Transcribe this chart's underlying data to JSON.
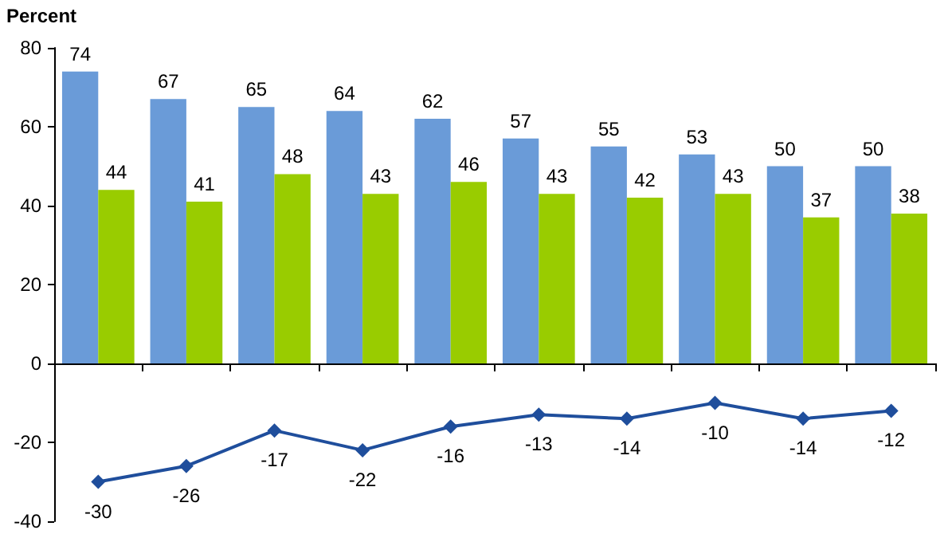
{
  "chart_data": {
    "type": "bar",
    "ylabel": "Percent",
    "categories": [
      null,
      null,
      null,
      null,
      null,
      null,
      null,
      null,
      null,
      null
    ],
    "series": [
      {
        "color": "#6a9bd8",
        "values": [
          74,
          67,
          65,
          64,
          62,
          57,
          55,
          53,
          50,
          50
        ]
      },
      {
        "color": "#99cc00",
        "values": [
          44,
          41,
          48,
          43,
          46,
          43,
          42,
          43,
          37,
          38
        ]
      },
      {
        "type": "line",
        "color": "#1f4e9c",
        "values": [
          -30,
          -26,
          -17,
          -22,
          -16,
          -13,
          -14,
          -10,
          -14,
          -12
        ]
      }
    ],
    "ylim": [
      -40,
      80
    ],
    "yticks": [
      -40,
      -20,
      0,
      20,
      40,
      60,
      80
    ],
    "data_labels": true,
    "marker": "diamond",
    "line_style": "solid"
  }
}
